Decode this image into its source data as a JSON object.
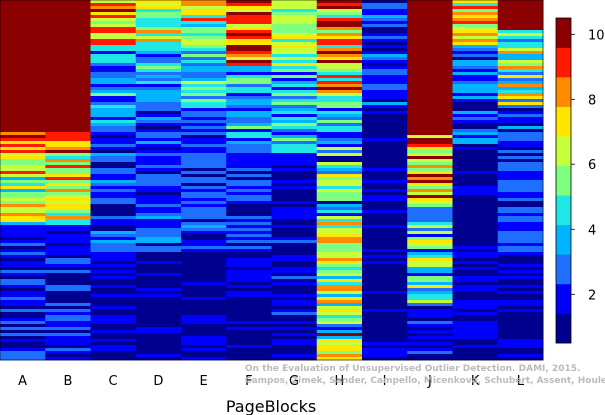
{
  "chart_data": {
    "type": "heatmap",
    "title": "",
    "xlabel": "PageBlocks",
    "ylabel": "",
    "columns": [
      "A",
      "B",
      "C",
      "D",
      "E",
      "F",
      "G",
      "H",
      "I",
      "J",
      "K",
      "L"
    ],
    "colorbar": {
      "ticks": [
        2,
        4,
        6,
        8,
        10
      ],
      "tick_labels": [
        "2",
        "4",
        "6",
        "8",
        "10"
      ],
      "levels": 11,
      "range": [
        0.5,
        10.5
      ],
      "colors": [
        "#00008f",
        "#0000ff",
        "#1f6fff",
        "#00b4ff",
        "#20e6e6",
        "#7fff7f",
        "#c8ff3c",
        "#ffe600",
        "#ff8c00",
        "#ff1a00",
        "#8b0000"
      ]
    },
    "rows": 120,
    "column_profiles": [
      {
        "name": "A",
        "segments": [
          [
            0,
            0.36,
            10.5,
            0.4
          ],
          [
            0.36,
            0.42,
            8.5,
            2.0
          ],
          [
            0.42,
            0.62,
            6.5,
            2.5
          ],
          [
            0.62,
            1.0,
            1.6,
            1.3
          ]
        ]
      },
      {
        "name": "B",
        "segments": [
          [
            0,
            0.36,
            10.5,
            0.3
          ],
          [
            0.36,
            0.42,
            8.0,
            2.0
          ],
          [
            0.42,
            0.62,
            6.5,
            2.5
          ],
          [
            0.62,
            1.0,
            1.6,
            1.3
          ]
        ]
      },
      {
        "name": "C",
        "segments": [
          [
            0,
            0.12,
            7.5,
            2.5
          ],
          [
            0.12,
            0.35,
            3.5,
            2.0
          ],
          [
            0.35,
            0.7,
            2.0,
            1.4
          ],
          [
            0.7,
            1.0,
            1.2,
            0.8
          ]
        ]
      },
      {
        "name": "D",
        "segments": [
          [
            0,
            0.12,
            6.5,
            2.5
          ],
          [
            0.12,
            0.3,
            4.0,
            1.8
          ],
          [
            0.3,
            0.7,
            2.2,
            1.2
          ],
          [
            0.7,
            1.0,
            1.1,
            0.6
          ]
        ]
      },
      {
        "name": "E",
        "segments": [
          [
            0,
            0.12,
            6.5,
            2.5
          ],
          [
            0.12,
            0.3,
            4.5,
            1.8
          ],
          [
            0.3,
            0.7,
            2.2,
            1.2
          ],
          [
            0.7,
            1.0,
            1.1,
            0.6
          ]
        ]
      },
      {
        "name": "F",
        "segments": [
          [
            0,
            0.18,
            8.0,
            3.0
          ],
          [
            0.18,
            0.4,
            3.5,
            2.0
          ],
          [
            0.4,
            0.7,
            2.0,
            1.3
          ],
          [
            0.7,
            1.0,
            1.1,
            0.8
          ]
        ]
      },
      {
        "name": "G",
        "segments": [
          [
            0,
            0.2,
            6.0,
            1.5
          ],
          [
            0.2,
            0.42,
            4.0,
            2.0
          ],
          [
            0.42,
            1.0,
            1.5,
            1.0
          ]
        ]
      },
      {
        "name": "H",
        "segments": [
          [
            0,
            0.3,
            7.5,
            3.5
          ],
          [
            0.3,
            0.6,
            4.0,
            3.0
          ],
          [
            0.6,
            0.85,
            6.0,
            2.5
          ],
          [
            0.85,
            1.0,
            6.0,
            4.0
          ]
        ]
      },
      {
        "name": "I",
        "segments": [
          [
            0,
            0.3,
            2.0,
            1.5
          ],
          [
            0.3,
            1.0,
            1.1,
            0.5
          ]
        ]
      },
      {
        "name": "J",
        "segments": [
          [
            0,
            0.37,
            10.5,
            0.2
          ],
          [
            0.37,
            0.55,
            8.0,
            3.0
          ],
          [
            0.55,
            0.85,
            5.0,
            3.0
          ],
          [
            0.85,
            1.0,
            1.5,
            1.0
          ]
        ]
      },
      {
        "name": "K",
        "segments": [
          [
            0,
            0.12,
            7.0,
            2.5
          ],
          [
            0.12,
            0.4,
            2.5,
            1.5
          ],
          [
            0.4,
            1.0,
            1.2,
            0.6
          ]
        ]
      },
      {
        "name": "L",
        "segments": [
          [
            0,
            0.08,
            10.5,
            0.3
          ],
          [
            0.08,
            0.3,
            5.5,
            3.0
          ],
          [
            0.3,
            0.7,
            2.0,
            1.3
          ],
          [
            0.7,
            1.0,
            1.1,
            0.7
          ]
        ]
      }
    ]
  },
  "watermark": {
    "line1": "On the Evaluation of Unsupervised Outlier Detection. DAMI, 2015.",
    "line2": "Campos, Zimek, Sander, Campello, Micenková, Schubert, Assent, Houle"
  }
}
